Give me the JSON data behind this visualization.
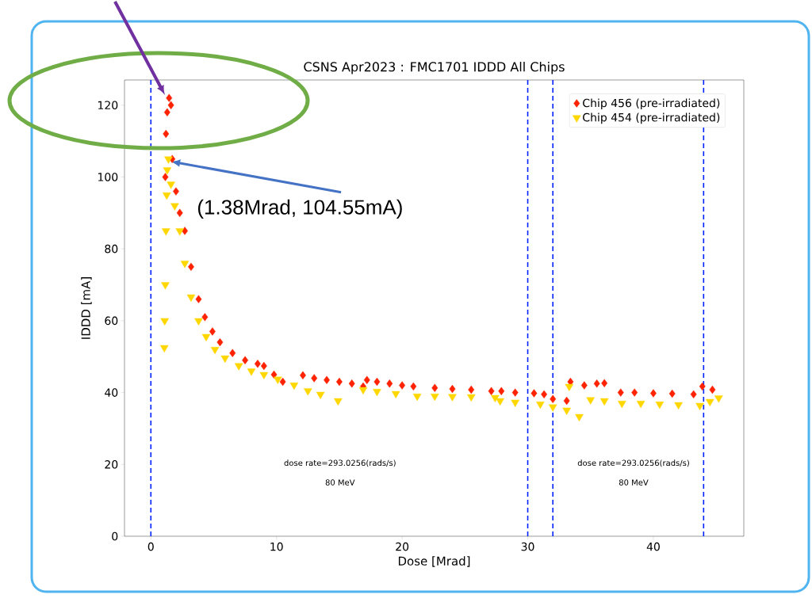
{
  "chart_data": {
    "type": "scatter",
    "title": "CSNS Apr2023 : FMC1701 IDDD All Chips",
    "xlabel": "Dose [Mrad]",
    "ylabel": "IDDD [mA]",
    "xlim": [
      -2.1,
      47.2
    ],
    "ylim": [
      0,
      127
    ],
    "xticks": [
      0,
      10,
      20,
      30,
      40
    ],
    "yticks": [
      0,
      20,
      40,
      60,
      80,
      100,
      120
    ],
    "legend": "top right",
    "grid": false,
    "series": [
      {
        "name": "Chip 456 (pre-irradiated)",
        "color": "#ff2200",
        "marker": "diamond",
        "x": [
          1.15,
          1.2,
          1.3,
          1.45,
          1.6,
          1.7,
          2.0,
          2.3,
          2.7,
          3.2,
          3.8,
          4.3,
          4.9,
          5.5,
          6.5,
          7.5,
          8.5,
          9.0,
          9.8,
          10.5,
          12.1,
          13,
          14,
          15,
          16,
          16.9,
          17.2,
          18,
          19,
          20,
          20.9,
          22.6,
          24,
          25.5,
          27.1,
          27.9,
          29,
          30.5,
          31.3,
          32,
          33.1,
          33.4,
          34.5,
          35.5,
          36.1,
          37.4,
          38.5,
          40,
          41.5,
          43.2,
          43.9,
          44.7
        ],
        "values": [
          100,
          112,
          118,
          122,
          120,
          105,
          96,
          90,
          85,
          75,
          66,
          61,
          57,
          54,
          51,
          49,
          48,
          47.4,
          45,
          43,
          44.8,
          44,
          43.5,
          43,
          42.5,
          41.7,
          43.5,
          43,
          42.5,
          42,
          41.7,
          41.3,
          41,
          40.8,
          40.4,
          40.4,
          40,
          39.8,
          39.5,
          38.2,
          37.7,
          43,
          42,
          42.5,
          42.6,
          40,
          40,
          39.8,
          39.7,
          39.5,
          41.7,
          40.8
        ]
      },
      {
        "name": "Chip 454 (pre-irradiated)",
        "color": "#ffd700",
        "marker": "triangle",
        "x": [
          1.07,
          1.1,
          1.15,
          1.2,
          1.26,
          1.3,
          1.4,
          1.6,
          1.9,
          2.3,
          2.7,
          3.2,
          3.8,
          4.4,
          5.1,
          5.9,
          7,
          8,
          9,
          10.1,
          11.4,
          12.5,
          13.5,
          14.9,
          16.9,
          18,
          19.5,
          21.2,
          22.6,
          24,
          25.5,
          27.4,
          27.8,
          29,
          31,
          32,
          33.1,
          33.3,
          34.1,
          35,
          36.1,
          37.5,
          39,
          40.5,
          42,
          43.7,
          44.5,
          45.2
        ],
        "values": [
          52.5,
          60,
          70,
          85,
          95,
          102,
          105,
          98,
          92,
          85,
          76,
          66.6,
          60,
          55.6,
          52,
          49.6,
          47.5,
          46,
          45,
          43.7,
          42.1,
          40.5,
          39.5,
          37.7,
          40.8,
          40.3,
          39.7,
          39,
          39,
          38.9,
          38.8,
          38.6,
          37.7,
          37.3,
          36.8,
          36,
          35.1,
          41.7,
          33.3,
          38,
          37.7,
          37,
          37,
          36.8,
          36.6,
          36.4,
          37.5,
          38.5
        ]
      }
    ],
    "ref_lines": [
      {
        "axis": "x",
        "value": 0,
        "color": "#0022ff",
        "line_style": "dashed"
      },
      {
        "axis": "x",
        "value": 30,
        "color": "#0022ff",
        "line_style": "dashed"
      },
      {
        "axis": "x",
        "value": 32,
        "color": "#0022ff",
        "line_style": "dashed"
      },
      {
        "axis": "x",
        "value": 44,
        "color": "#0022ff",
        "line_style": "dashed"
      }
    ],
    "annotations": [
      {
        "text": "(1.38Mrad, 104.55mA)",
        "x": 1.38,
        "y": 104.55
      },
      "dose rate=293.0256(rads/s)",
      "80 MeV",
      "dose rate=293.0256(rads/s)",
      "80 MeV"
    ]
  }
}
